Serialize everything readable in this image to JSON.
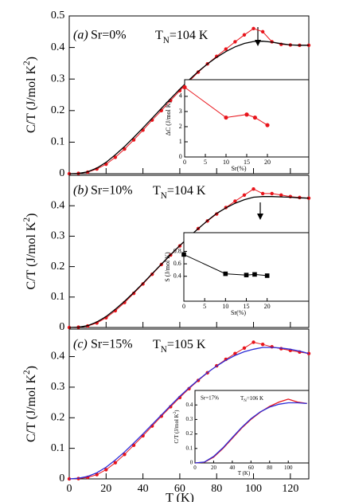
{
  "chart_data": [
    {
      "type": "line",
      "label": "(a)",
      "annotation": "Sr=0%",
      "tn_label": {
        "base": "T",
        "sub": "N",
        "text": "=104 K"
      },
      "ylabel": {
        "base": "C/T (J/mol K",
        "sup": "2",
        "end": ")"
      },
      "x": [
        0,
        5,
        10,
        15,
        20,
        25,
        30,
        35,
        40,
        45,
        50,
        55,
        60,
        65,
        70,
        75,
        80,
        85,
        90,
        95,
        100,
        105,
        110,
        115,
        120,
        125,
        130
      ],
      "series": [
        {
          "color": "#e8141b",
          "marker": "circle",
          "line": true,
          "values": [
            0,
            0.001,
            0.005,
            0.015,
            0.03,
            0.052,
            0.078,
            0.107,
            0.138,
            0.17,
            0.2,
            0.232,
            0.263,
            0.293,
            0.322,
            0.348,
            0.372,
            0.395,
            0.418,
            0.44,
            0.46,
            0.45,
            0.418,
            0.41,
            0.408,
            0.407,
            0.407
          ]
        },
        {
          "color": "#000000",
          "line": true,
          "values": [
            0,
            0.001,
            0.006,
            0.018,
            0.036,
            0.06,
            0.086,
            0.115,
            0.145,
            0.176,
            0.207,
            0.238,
            0.268,
            0.297,
            0.324,
            0.348,
            0.369,
            0.387,
            0.402,
            0.413,
            0.419,
            0.42,
            0.417,
            0.412,
            0.408,
            0.407,
            0.407
          ]
        }
      ],
      "xlim": [
        0,
        130
      ],
      "xticks": [
        0,
        20,
        40,
        60,
        80,
        100,
        120
      ],
      "xtick_labels": false,
      "ylim": [
        0,
        0.5
      ],
      "yticks": [
        0,
        0.1,
        0.2,
        0.3,
        0.4,
        0.5
      ]
    },
    {
      "type": "line",
      "label": "(b)",
      "annotation": "Sr=10%",
      "tn_label": {
        "base": "T",
        "sub": "N",
        "text": "=104 K"
      },
      "ylabel": {
        "base": "C/T (J/mol K",
        "sup": "2",
        "end": ")"
      },
      "x": [
        0,
        5,
        10,
        15,
        20,
        25,
        30,
        35,
        40,
        45,
        50,
        55,
        60,
        65,
        70,
        75,
        80,
        85,
        90,
        95,
        100,
        105,
        110,
        115,
        120,
        125,
        130
      ],
      "series": [
        {
          "color": "#e8141b",
          "marker": "circle",
          "line": true,
          "values": [
            0,
            0.001,
            0.005,
            0.015,
            0.032,
            0.055,
            0.082,
            0.112,
            0.143,
            0.175,
            0.207,
            0.238,
            0.268,
            0.297,
            0.325,
            0.35,
            0.373,
            0.394,
            0.415,
            0.435,
            0.455,
            0.44,
            0.44,
            0.435,
            0.43,
            0.427,
            0.425
          ]
        },
        {
          "color": "#000000",
          "line": true,
          "values": [
            0,
            0.001,
            0.006,
            0.018,
            0.036,
            0.06,
            0.086,
            0.115,
            0.145,
            0.177,
            0.208,
            0.239,
            0.269,
            0.298,
            0.325,
            0.351,
            0.375,
            0.393,
            0.408,
            0.42,
            0.428,
            0.43,
            0.43,
            0.429,
            0.428,
            0.426,
            0.425
          ]
        }
      ],
      "xlim": [
        0,
        130
      ],
      "xticks": [
        0,
        20,
        40,
        60,
        80,
        100,
        120
      ],
      "xtick_labels": false,
      "ylim": [
        0,
        0.5
      ],
      "yticks": [
        0,
        0.1,
        0.2,
        0.3,
        0.4
      ]
    },
    {
      "type": "line",
      "label": "(c)",
      "annotation": "Sr=15%",
      "tn_label": {
        "base": "T",
        "sub": "N",
        "text": "=105 K"
      },
      "ylabel": {
        "base": "C/T (J/mol K",
        "sup": "2",
        "end": ")"
      },
      "xlabel": "T (K)",
      "x": [
        0,
        5,
        10,
        15,
        20,
        25,
        30,
        35,
        40,
        45,
        50,
        55,
        60,
        65,
        70,
        75,
        80,
        85,
        90,
        95,
        100,
        105,
        110,
        115,
        120,
        125,
        130
      ],
      "series": [
        {
          "color": "#e8141b",
          "marker": "circle",
          "line": true,
          "values": [
            0,
            0.001,
            0.005,
            0.014,
            0.03,
            0.053,
            0.08,
            0.11,
            0.141,
            0.173,
            0.205,
            0.236,
            0.266,
            0.295,
            0.322,
            0.347,
            0.37,
            0.391,
            0.41,
            0.428,
            0.447,
            0.44,
            0.432,
            0.426,
            0.42,
            0.415,
            0.41
          ]
        },
        {
          "color": "#2b2bd6",
          "line": true,
          "values": [
            0,
            0.002,
            0.008,
            0.02,
            0.038,
            0.062,
            0.088,
            0.117,
            0.147,
            0.178,
            0.209,
            0.24,
            0.27,
            0.298,
            0.324,
            0.348,
            0.369,
            0.388,
            0.404,
            0.416,
            0.424,
            0.43,
            0.43,
            0.428,
            0.424,
            0.418,
            0.41
          ]
        }
      ],
      "xlim": [
        0,
        130
      ],
      "xticks": [
        0,
        20,
        40,
        60,
        80,
        100,
        120
      ],
      "ylim": [
        0,
        0.49
      ],
      "yticks": [
        0,
        0.1,
        0.2,
        0.3,
        0.4
      ]
    },
    {
      "type": "line",
      "xlabel": "Sr(%)",
      "ylabel": {
        "base": "ΔC (J/mol K)"
      },
      "x": [
        0,
        10,
        15,
        17,
        20
      ],
      "series": [
        {
          "color": "#e8141b",
          "marker": "circle",
          "line": true,
          "values": [
            4.6,
            2.6,
            2.8,
            2.6,
            2.1
          ]
        }
      ],
      "xlim": [
        0,
        30
      ],
      "xticks": [
        0,
        5,
        10,
        15,
        20
      ],
      "ylim": [
        0,
        5.1
      ],
      "yticks": [
        0,
        1,
        2,
        3,
        4
      ]
    },
    {
      "type": "line",
      "xlabel": "Sr(%)",
      "ylabel": {
        "base": "S (J/mol K)"
      },
      "x": [
        0,
        10,
        15,
        17,
        20
      ],
      "series": [
        {
          "color": "#000000",
          "marker": "square",
          "line": true,
          "values": [
            0.75,
            0.44,
            0.42,
            0.43,
            0.41
          ]
        }
      ],
      "xlim": [
        0,
        30
      ],
      "xticks": [
        0,
        5,
        10,
        15,
        20
      ],
      "ylim": [
        0,
        1.1
      ],
      "yticks": [
        0.4,
        0.6,
        0.8
      ]
    },
    {
      "type": "line",
      "annotation": "Sr=17%",
      "tn_label": {
        "base": "T",
        "sub": "N",
        "text": "=106 K"
      },
      "ylabel": {
        "base": "C/T (J/mol K",
        "sup": "2",
        "end": ")"
      },
      "xlabel": "T (K)",
      "x": [
        0,
        10,
        20,
        30,
        40,
        50,
        60,
        70,
        80,
        90,
        100,
        110,
        120
      ],
      "series": [
        {
          "color": "#e8141b",
          "line": true,
          "values": [
            0,
            0.005,
            0.04,
            0.1,
            0.17,
            0.24,
            0.3,
            0.35,
            0.39,
            0.42,
            0.44,
            0.42,
            0.41
          ]
        },
        {
          "color": "#2b2bd6",
          "line": true,
          "values": [
            0,
            0.006,
            0.045,
            0.105,
            0.175,
            0.245,
            0.305,
            0.352,
            0.385,
            0.405,
            0.415,
            0.415,
            0.41
          ]
        }
      ],
      "xlim": [
        0,
        122
      ],
      "xticks": [
        0,
        20,
        40,
        60,
        80,
        100
      ],
      "ylim": [
        0,
        0.5
      ],
      "yticks": [
        0,
        0.1,
        0.2,
        0.3,
        0.4
      ]
    }
  ]
}
